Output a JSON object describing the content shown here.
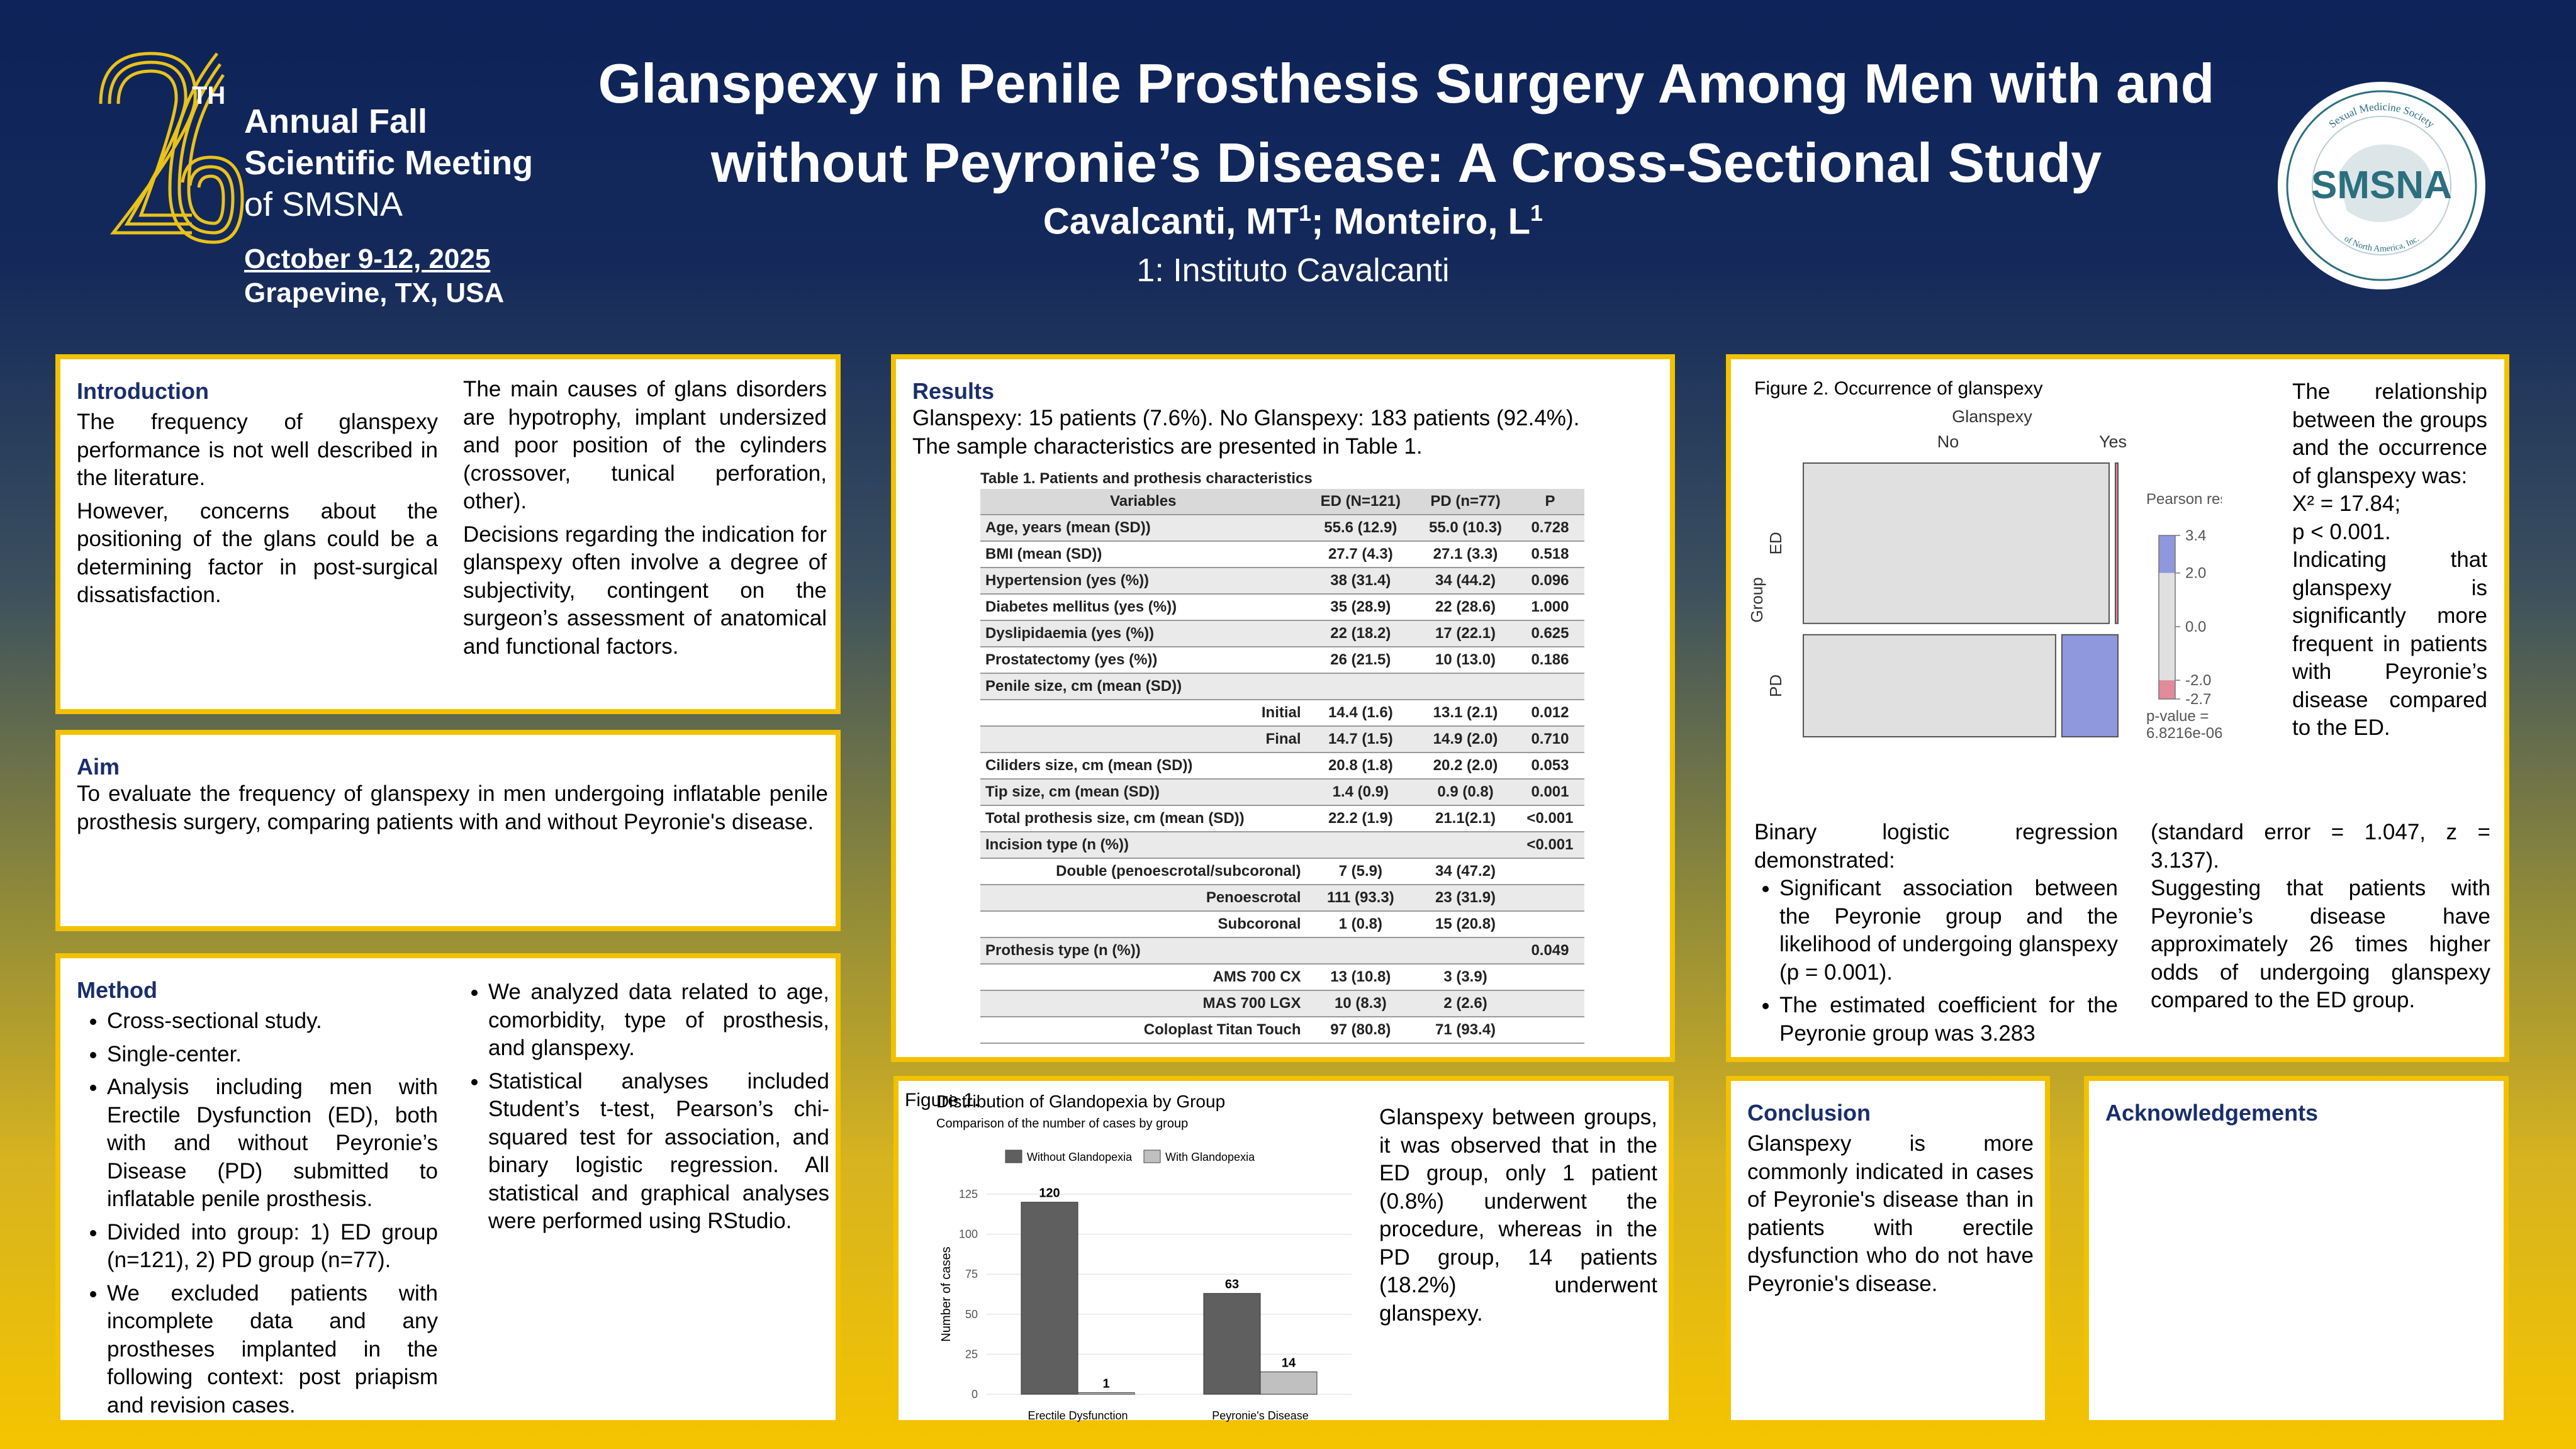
{
  "meeting": {
    "number": "26",
    "suffix": "TH",
    "line1": "Annual Fall",
    "line2": "Scientific Meeting",
    "line3": "of SMSNA",
    "dates": "October 9-12, 2025",
    "place": "Grapevine, TX, USA"
  },
  "title_line1": "Glanspexy in Penile Prosthesis Surgery Among Men with and",
  "title_line2": "without Peyronie’s Disease: A Cross-Sectional Study",
  "authors": {
    "a1": "Cavalcanti, MT",
    "s1": "1",
    "sep": "; Monteiro, L",
    "s2": "1"
  },
  "affiliation": "1: Instituto Cavalcanti",
  "logo": {
    "ring_top": "Sexual Medicine Society",
    "ring_bottom": "of North America, Inc.",
    "abbr": "SMSNA"
  },
  "introduction": {
    "heading": "Introduction",
    "p1": "The frequency of glanspexy performance is not well described in the literature.",
    "p2": "However, concerns about the positioning of the glans could be a determining factor in post-surgical dissatisfaction.",
    "p3": "The main causes of glans disorders are hypotrophy, implant undersized and poor position of the cylinders (crossover, tunical perforation, other).",
    "p4": "Decisions regarding the indication for glanspexy often involve a degree of subjectivity, contingent on the surgeon’s assessment of anatomical and functional factors."
  },
  "aim": {
    "heading": "Aim",
    "text": "To evaluate the frequency of glanspexy in men undergoing inflatable penile prosthesis surgery, comparing patients with and without Peyronie's disease."
  },
  "method": {
    "heading": "Method",
    "items": [
      "Cross-sectional study.",
      "Single-center.",
      "Analysis including men with Erectile Dysfunction (ED), both with and without Peyronie’s Disease (PD) submitted to inflatable penile prosthesis.",
      "Divided into group: 1) ED group (n=121), 2) PD group (n=77).",
      "We excluded patients with incomplete data and any prostheses implanted in the following context: post priapism and revision cases.",
      "We analyzed data related to age, comorbidity, type of prosthesis, and glanspexy.",
      "Statistical analyses included Student’s t-test, Pearson’s chi-squared test for association, and binary logistic regression. All statistical and graphical analyses were performed using RStudio."
    ]
  },
  "results": {
    "heading": "Results",
    "text1": "Glanspexy: 15 patients (7.6%). No Glanspexy: 183 patients (92.4%).",
    "text2": "The sample characteristics are presented in Table 1.",
    "table_title": "Table 1. Patients and prothesis characteristics",
    "columns": [
      "Variables",
      "ED (N=121)",
      "PD (n=77)",
      "P"
    ],
    "rows": [
      [
        "Age, years (mean (SD))",
        "55.6 (12.9)",
        "55.0 (10.3)",
        "0.728"
      ],
      [
        "BMI (mean (SD))",
        "27.7 (4.3)",
        "27.1 (3.3)",
        "0.518"
      ],
      [
        "Hypertension (yes (%))",
        "38 (31.4)",
        "34 (44.2)",
        "0.096"
      ],
      [
        "Diabetes mellitus (yes (%))",
        "35 (28.9)",
        "22 (28.6)",
        "1.000"
      ],
      [
        "Dyslipidaemia (yes (%))",
        "22 (18.2)",
        "17 (22.1)",
        "0.625"
      ],
      [
        "Prostatectomy (yes (%))",
        "26 (21.5)",
        "10 (13.0)",
        "0.186"
      ],
      [
        "Penile size, cm (mean (SD))",
        "",
        "",
        ""
      ],
      [
        "Initial",
        "14.4 (1.6)",
        "13.1 (2.1)",
        "0.012"
      ],
      [
        "Final",
        "14.7 (1.5)",
        "14.9 (2.0)",
        "0.710"
      ],
      [
        "Ciliders size, cm (mean (SD))",
        "20.8 (1.8)",
        "20.2 (2.0)",
        "0.053"
      ],
      [
        "Tip size, cm (mean (SD))",
        "1.4 (0.9)",
        "0.9 (0.8)",
        "0.001"
      ],
      [
        "Total prothesis size, cm (mean (SD))",
        "22.2 (1.9)",
        "21.1(2.1)",
        "<0.001"
      ],
      [
        "Incision type (n (%))",
        "",
        "",
        "<0.001"
      ],
      [
        "Double (penoescrotal/subcoronal)",
        "7 (5.9)",
        "34 (47.2)",
        ""
      ],
      [
        "Penoescrotal",
        "111 (93.3)",
        "23 (31.9)",
        ""
      ],
      [
        "Subcoronal",
        "1 (0.8)",
        "15 (20.8)",
        ""
      ],
      [
        "Prothesis type (n (%))",
        "",
        "",
        "0.049"
      ],
      [
        "AMS 700 CX",
        "13 (10.8)",
        "3 (3.9)",
        ""
      ],
      [
        "MAS 700 LGX",
        "10 (8.3)",
        "2 (2.6)",
        ""
      ],
      [
        "Coloplast Titan Touch",
        "97 (80.8)",
        "71 (93.4)",
        ""
      ]
    ]
  },
  "figure1": {
    "label": "Figure 1.",
    "text": "Glanspexy between groups, it was observed that in the ED group, only 1 patient (0.8%) underwent the procedure, whereas in the PD group, 14 patients (18.2%) underwent glanspexy."
  },
  "chart_data": [
    {
      "type": "bar",
      "title": "Distribution of Glandopexia by Group",
      "subtitle": "Comparison of the number of cases by group",
      "categories": [
        "Erectile Dysfunction",
        "Peyronie's Disease"
      ],
      "series": [
        {
          "name": "Without Glandopexia",
          "values": [
            120,
            63
          ]
        },
        {
          "name": "With Glandopexia",
          "values": [
            1,
            14
          ]
        }
      ],
      "xlabel": "Group",
      "ylabel": "Number of cases",
      "ylim": [
        0,
        125
      ],
      "yticks": [
        0,
        25,
        50,
        75,
        100,
        125
      ],
      "legend": "top",
      "colors": [
        "#5f5f5f",
        "#c0c0c0"
      ]
    },
    {
      "type": "mosaic",
      "title": "Glanspexy",
      "columns_label": [
        "No",
        "Yes"
      ],
      "rows_label": [
        "ED",
        "PD"
      ],
      "ylabel": "Group",
      "counts": [
        [
          120,
          1
        ],
        [
          63,
          14
        ]
      ],
      "residual_legend_title": "Pearson residuals:",
      "residual_ticks": [
        "3.4",
        "2.0",
        "0.0",
        "-2.0",
        "-2.7"
      ],
      "pvalue_label": "p-value =",
      "pvalue": "6.8216e-06",
      "colors": {
        "positive": "#8f97dd",
        "negative": "#e08a9a",
        "neutral": "#e0e0e0"
      }
    }
  ],
  "figure2": {
    "caption": "Figure 2. Occurrence of glanspexy",
    "side_text": "The relationship between the groups and the occurrence of glanspexy was:",
    "chi": "X² = 17.84;",
    "pval": "p < 0.001.",
    "side_text2": "Indicating that glanspexy is significantly more frequent in patients with Peyronie’s disease compared to the ED.",
    "reg_intro": "Binary logistic regression demonstrated:",
    "reg_items": [
      "Significant association between the Peyronie group and the likelihood of undergoing glanspexy (p = 0.001).",
      "The estimated coefficient for the Peyronie group was 3.283"
    ],
    "reg_cont": "(standard error = 1.047, z = 3.137).",
    "reg_cont2": "Suggesting that patients with Peyronie’s disease have approximately 26 times higher odds of undergoing glanspexy compared to the ED group."
  },
  "conclusion": {
    "heading": "Conclusion",
    "text": "Glanspexy is more commonly indicated in cases of Peyronie's disease than in patients with erectile dysfunction who do not have Peyronie's disease."
  },
  "acknowledgements": {
    "heading": "Acknowledgements"
  }
}
